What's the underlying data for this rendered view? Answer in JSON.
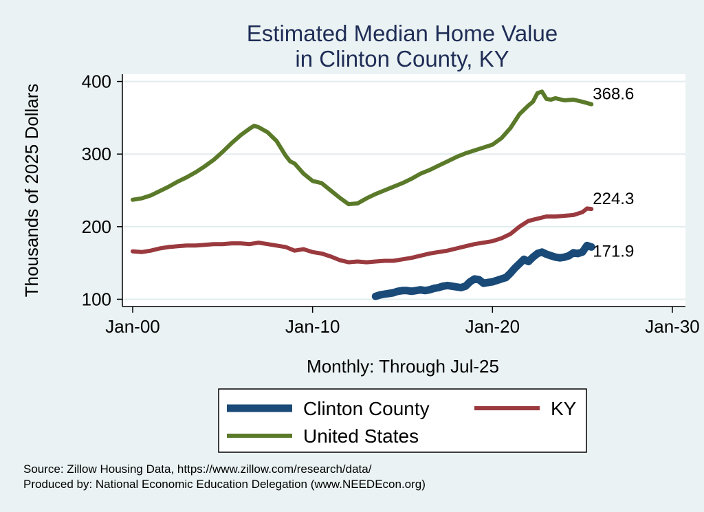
{
  "chart_data": {
    "type": "line",
    "title_line1": "Estimated Median Home Value",
    "title_line2": "in Clinton County, KY",
    "ylabel": "Thousands of 2025 Dollars",
    "xlabel": "Monthly: Through Jul-25",
    "ylim": [
      90,
      410
    ],
    "yticks": [
      100,
      200,
      300,
      400
    ],
    "xlim": [
      2000,
      2030
    ],
    "xticks": [
      {
        "value": 2000,
        "label": "Jan-00"
      },
      {
        "value": 2010,
        "label": "Jan-10"
      },
      {
        "value": 2020,
        "label": "Jan-20"
      },
      {
        "value": 2030,
        "label": "Jan-30"
      }
    ],
    "grid": true,
    "legend_position": "bottom",
    "series": [
      {
        "name": "Clinton County",
        "color": "#1a4a78",
        "end_label": "171.9",
        "points": [
          [
            2013.5,
            104
          ],
          [
            2013.75,
            106
          ],
          [
            2014.0,
            107
          ],
          [
            2014.25,
            108
          ],
          [
            2014.5,
            109
          ],
          [
            2014.75,
            111
          ],
          [
            2015.0,
            112
          ],
          [
            2015.25,
            112
          ],
          [
            2015.5,
            111
          ],
          [
            2015.75,
            112
          ],
          [
            2016.0,
            113
          ],
          [
            2016.25,
            112
          ],
          [
            2016.5,
            113
          ],
          [
            2016.75,
            115
          ],
          [
            2017.0,
            116
          ],
          [
            2017.25,
            118
          ],
          [
            2017.5,
            119
          ],
          [
            2017.75,
            118
          ],
          [
            2018.0,
            117
          ],
          [
            2018.25,
            116
          ],
          [
            2018.5,
            118
          ],
          [
            2018.75,
            124
          ],
          [
            2019.0,
            128
          ],
          [
            2019.25,
            127
          ],
          [
            2019.5,
            122
          ],
          [
            2019.75,
            123
          ],
          [
            2020.0,
            124
          ],
          [
            2020.25,
            126
          ],
          [
            2020.5,
            128
          ],
          [
            2020.75,
            130
          ],
          [
            2021.0,
            136
          ],
          [
            2021.25,
            143
          ],
          [
            2021.5,
            149
          ],
          [
            2021.75,
            155
          ],
          [
            2022.0,
            152
          ],
          [
            2022.25,
            158
          ],
          [
            2022.5,
            163
          ],
          [
            2022.75,
            165
          ],
          [
            2023.0,
            162
          ],
          [
            2023.25,
            160
          ],
          [
            2023.5,
            158
          ],
          [
            2023.75,
            157
          ],
          [
            2024.0,
            158
          ],
          [
            2024.25,
            160
          ],
          [
            2024.5,
            164
          ],
          [
            2024.75,
            163
          ],
          [
            2025.0,
            165
          ],
          [
            2025.25,
            174
          ],
          [
            2025.5,
            172
          ]
        ]
      },
      {
        "name": "KY",
        "color": "#9a3a3f",
        "end_label": "224.3",
        "points": [
          [
            2000.0,
            166
          ],
          [
            2000.5,
            165
          ],
          [
            2001.0,
            167
          ],
          [
            2001.5,
            170
          ],
          [
            2002.0,
            172
          ],
          [
            2002.5,
            173
          ],
          [
            2003.0,
            174
          ],
          [
            2003.5,
            174
          ],
          [
            2004.0,
            175
          ],
          [
            2004.5,
            176
          ],
          [
            2005.0,
            176
          ],
          [
            2005.5,
            177
          ],
          [
            2006.0,
            177
          ],
          [
            2006.5,
            176
          ],
          [
            2007.0,
            178
          ],
          [
            2007.5,
            176
          ],
          [
            2008.0,
            174
          ],
          [
            2008.5,
            172
          ],
          [
            2009.0,
            167
          ],
          [
            2009.5,
            169
          ],
          [
            2010.0,
            165
          ],
          [
            2010.5,
            163
          ],
          [
            2011.0,
            159
          ],
          [
            2011.5,
            154
          ],
          [
            2012.0,
            151
          ],
          [
            2012.5,
            152
          ],
          [
            2013.0,
            151
          ],
          [
            2013.5,
            152
          ],
          [
            2014.0,
            153
          ],
          [
            2014.5,
            153
          ],
          [
            2015.0,
            155
          ],
          [
            2015.5,
            157
          ],
          [
            2016.0,
            160
          ],
          [
            2016.5,
            163
          ],
          [
            2017.0,
            165
          ],
          [
            2017.5,
            167
          ],
          [
            2018.0,
            170
          ],
          [
            2018.5,
            173
          ],
          [
            2019.0,
            176
          ],
          [
            2019.5,
            178
          ],
          [
            2020.0,
            180
          ],
          [
            2020.5,
            184
          ],
          [
            2021.0,
            190
          ],
          [
            2021.5,
            200
          ],
          [
            2022.0,
            208
          ],
          [
            2022.5,
            211
          ],
          [
            2023.0,
            214
          ],
          [
            2023.5,
            214
          ],
          [
            2024.0,
            215
          ],
          [
            2024.5,
            216
          ],
          [
            2025.0,
            220
          ],
          [
            2025.25,
            225
          ],
          [
            2025.5,
            224.3
          ]
        ]
      },
      {
        "name": "United States",
        "color": "#5a7a2a",
        "end_label": "368.6",
        "points": [
          [
            2000.0,
            237
          ],
          [
            2000.5,
            239
          ],
          [
            2001.0,
            243
          ],
          [
            2001.5,
            249
          ],
          [
            2002.0,
            255
          ],
          [
            2002.5,
            262
          ],
          [
            2003.0,
            268
          ],
          [
            2003.5,
            275
          ],
          [
            2004.0,
            283
          ],
          [
            2004.5,
            292
          ],
          [
            2005.0,
            303
          ],
          [
            2005.5,
            315
          ],
          [
            2006.0,
            326
          ],
          [
            2006.5,
            335
          ],
          [
            2006.75,
            339
          ],
          [
            2007.0,
            337
          ],
          [
            2007.5,
            330
          ],
          [
            2008.0,
            318
          ],
          [
            2008.5,
            298
          ],
          [
            2008.75,
            290
          ],
          [
            2009.0,
            287
          ],
          [
            2009.5,
            273
          ],
          [
            2010.0,
            263
          ],
          [
            2010.5,
            260
          ],
          [
            2011.0,
            250
          ],
          [
            2011.5,
            240
          ],
          [
            2012.0,
            231
          ],
          [
            2012.5,
            232
          ],
          [
            2013.0,
            239
          ],
          [
            2013.5,
            245
          ],
          [
            2014.0,
            250
          ],
          [
            2014.5,
            255
          ],
          [
            2015.0,
            260
          ],
          [
            2015.5,
            266
          ],
          [
            2016.0,
            273
          ],
          [
            2016.5,
            278
          ],
          [
            2017.0,
            284
          ],
          [
            2017.5,
            290
          ],
          [
            2018.0,
            296
          ],
          [
            2018.5,
            301
          ],
          [
            2019.0,
            305
          ],
          [
            2019.5,
            309
          ],
          [
            2020.0,
            313
          ],
          [
            2020.5,
            322
          ],
          [
            2021.0,
            336
          ],
          [
            2021.5,
            355
          ],
          [
            2022.0,
            367
          ],
          [
            2022.25,
            372
          ],
          [
            2022.5,
            384
          ],
          [
            2022.75,
            386
          ],
          [
            2023.0,
            376
          ],
          [
            2023.25,
            375
          ],
          [
            2023.5,
            377
          ],
          [
            2024.0,
            374
          ],
          [
            2024.5,
            375
          ],
          [
            2025.0,
            372
          ],
          [
            2025.5,
            368.6
          ]
        ]
      }
    ],
    "source_note": "Source: Zillow Housing Data, https://www.zillow.com/research/data/",
    "producer_note": "Produced by: National Economic Education Delegation (www.NEEDEcon.org)"
  }
}
